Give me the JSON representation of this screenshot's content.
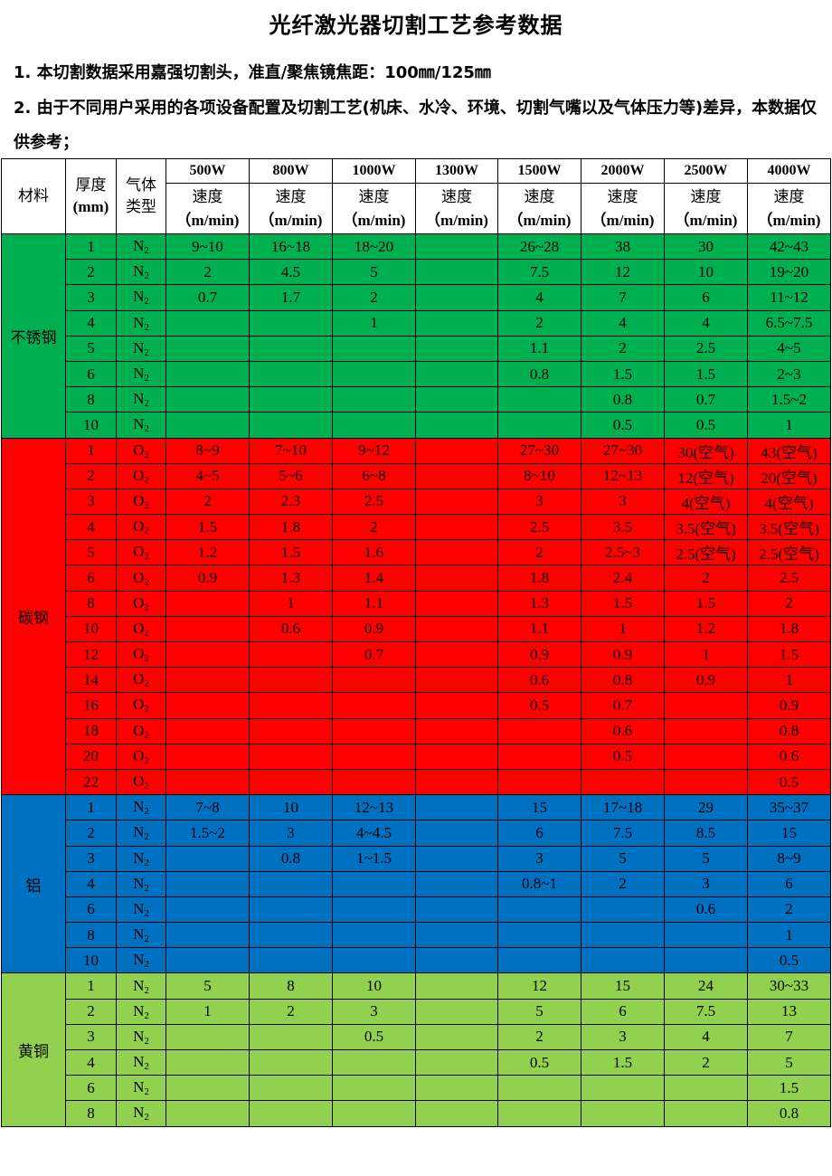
{
  "title": "光纤激光器切割工艺参考数据",
  "notes": [
    "1. 本切割数据采用嘉强切割头，准直/聚焦镜焦距：100㎜/125㎜",
    "2. 由于不同用户采用的各项设备配置及切割工艺(机床、水冷、环境、切割气嘴以及气体压力等)差异，本数据仅供参考；"
  ],
  "header": {
    "material": "材料",
    "thickness": "厚度",
    "thickness_unit": "(mm)",
    "gas": "气体类型",
    "powers": [
      "500W",
      "800W",
      "1000W",
      "1300W",
      "1500W",
      "2000W",
      "2500W",
      "4000W"
    ],
    "speed": "速度",
    "speed_unit": "（m/min)"
  },
  "sections": [
    {
      "material": "不锈钢",
      "color": "#00b050",
      "rows": [
        {
          "t": "1",
          "gas": "N2",
          "v": [
            "9~10",
            "16~18",
            "18~20",
            "",
            "26~28",
            "38",
            "30",
            "42~43"
          ]
        },
        {
          "t": "2",
          "gas": "N2",
          "v": [
            "2",
            "4.5",
            "5",
            "",
            "7.5",
            "12",
            "10",
            "19~20"
          ]
        },
        {
          "t": "3",
          "gas": "N2",
          "v": [
            "0.7",
            "1.7",
            "2",
            "",
            "4",
            "7",
            "6",
            "11~12"
          ]
        },
        {
          "t": "4",
          "gas": "N2",
          "v": [
            "",
            "",
            "1",
            "",
            "2",
            "4",
            "4",
            "6.5~7.5"
          ]
        },
        {
          "t": "5",
          "gas": "N2",
          "v": [
            "",
            "",
            "",
            "",
            "1.1",
            "2",
            "2.5",
            "4~5"
          ]
        },
        {
          "t": "6",
          "gas": "N2",
          "v": [
            "",
            "",
            "",
            "",
            "0.8",
            "1.5",
            "1.5",
            "2~3"
          ]
        },
        {
          "t": "8",
          "gas": "N2",
          "v": [
            "",
            "",
            "",
            "",
            "",
            "0.8",
            "0.7",
            "1.5~2"
          ]
        },
        {
          "t": "10",
          "gas": "N2",
          "v": [
            "",
            "",
            "",
            "",
            "",
            "0.5",
            "0.5",
            "1"
          ]
        }
      ]
    },
    {
      "material": "碳钢",
      "color": "#ff0000",
      "rows": [
        {
          "t": "1",
          "gas": "O2",
          "v": [
            "8~9",
            "7~10",
            "9~12",
            "",
            "27~30",
            "27~30",
            "30(空气)",
            "43(空气)"
          ]
        },
        {
          "t": "2",
          "gas": "O2",
          "v": [
            "4~5",
            "5~6",
            "6~8",
            "",
            "8~10",
            "12~13",
            "12(空气)",
            "20(空气)"
          ]
        },
        {
          "t": "3",
          "gas": "O2",
          "v": [
            "2",
            "2.3",
            "2.5",
            "",
            "3",
            "3",
            "4(空气)",
            "4(空气)"
          ]
        },
        {
          "t": "4",
          "gas": "O2",
          "v": [
            "1.5",
            "1.8",
            "2",
            "",
            "2.5",
            "3.5",
            "3.5(空气)",
            "3.5(空气)"
          ]
        },
        {
          "t": "5",
          "gas": "O2",
          "v": [
            "1.2",
            "1.5",
            "1.6",
            "",
            "2",
            "2.5~3",
            "2.5(空气)",
            "2.5(空气)"
          ]
        },
        {
          "t": "6",
          "gas": "O2",
          "v": [
            "0.9",
            "1.3",
            "1.4",
            "",
            "1.8",
            "2.4",
            "2",
            "2.5"
          ]
        },
        {
          "t": "8",
          "gas": "O2",
          "v": [
            "",
            "1",
            "1.1",
            "",
            "1.3",
            "1.5",
            "1.5",
            "2"
          ]
        },
        {
          "t": "10",
          "gas": "O2",
          "v": [
            "",
            "0.6",
            "0.9",
            "",
            "1.1",
            "1",
            "1.2",
            "1.8"
          ]
        },
        {
          "t": "12",
          "gas": "O2",
          "v": [
            "",
            "",
            "0.7",
            "",
            "0.9",
            "0.9",
            "1",
            "1.5"
          ]
        },
        {
          "t": "14",
          "gas": "O2",
          "v": [
            "",
            "",
            "",
            "",
            "0.6",
            "0.8",
            "0.9",
            "1"
          ]
        },
        {
          "t": "16",
          "gas": "O2",
          "v": [
            "",
            "",
            "",
            "",
            "0.5",
            "0.7",
            "",
            "0.9"
          ]
        },
        {
          "t": "18",
          "gas": "O2",
          "v": [
            "",
            "",
            "",
            "",
            "",
            "0.6",
            "",
            "0.8"
          ]
        },
        {
          "t": "20",
          "gas": "O2",
          "v": [
            "",
            "",
            "",
            "",
            "",
            "0.5",
            "",
            "0.6"
          ]
        },
        {
          "t": "22",
          "gas": "O2",
          "v": [
            "",
            "",
            "",
            "",
            "",
            "",
            "",
            "0.5"
          ]
        }
      ]
    },
    {
      "material": "铝",
      "color": "#0070c0",
      "rows": [
        {
          "t": "1",
          "gas": "N2",
          "v": [
            "7~8",
            "10",
            "12~13",
            "",
            "15",
            "17~18",
            "29",
            "35~37"
          ]
        },
        {
          "t": "2",
          "gas": "N2",
          "v": [
            "1.5~2",
            "3",
            "4~4.5",
            "",
            "6",
            "7.5",
            "8.5",
            "15"
          ]
        },
        {
          "t": "3",
          "gas": "N2",
          "v": [
            "",
            "0.8",
            "1~1.5",
            "",
            "3",
            "5",
            "5",
            "8~9"
          ]
        },
        {
          "t": "4",
          "gas": "N2",
          "v": [
            "",
            "",
            "",
            "",
            "0.8~1",
            "2",
            "3",
            "6"
          ]
        },
        {
          "t": "6",
          "gas": "N2",
          "v": [
            "",
            "",
            "",
            "",
            "",
            "",
            "0.6",
            "2"
          ]
        },
        {
          "t": "8",
          "gas": "N2",
          "v": [
            "",
            "",
            "",
            "",
            "",
            "",
            "",
            "1"
          ]
        },
        {
          "t": "10",
          "gas": "N2",
          "v": [
            "",
            "",
            "",
            "",
            "",
            "",
            "",
            "0.5"
          ]
        }
      ]
    },
    {
      "material": "黄铜",
      "color": "#92d050",
      "rows": [
        {
          "t": "1",
          "gas": "N2",
          "v": [
            "5",
            "8",
            "10",
            "",
            "12",
            "15",
            "24",
            "30~33"
          ]
        },
        {
          "t": "2",
          "gas": "N2",
          "v": [
            "1",
            "2",
            "3",
            "",
            "5",
            "6",
            "7.5",
            "13"
          ]
        },
        {
          "t": "3",
          "gas": "N2",
          "v": [
            "",
            "",
            "0.5",
            "",
            "2",
            "3",
            "4",
            "7"
          ]
        },
        {
          "t": "4",
          "gas": "N2",
          "v": [
            "",
            "",
            "",
            "",
            "0.5",
            "1.5",
            "2",
            "5"
          ]
        },
        {
          "t": "6",
          "gas": "N2",
          "v": [
            "",
            "",
            "",
            "",
            "",
            "",
            "",
            "1.5"
          ]
        },
        {
          "t": "8",
          "gas": "N2",
          "v": [
            "",
            "",
            "",
            "",
            "",
            "",
            "",
            "0.8"
          ]
        }
      ]
    }
  ]
}
